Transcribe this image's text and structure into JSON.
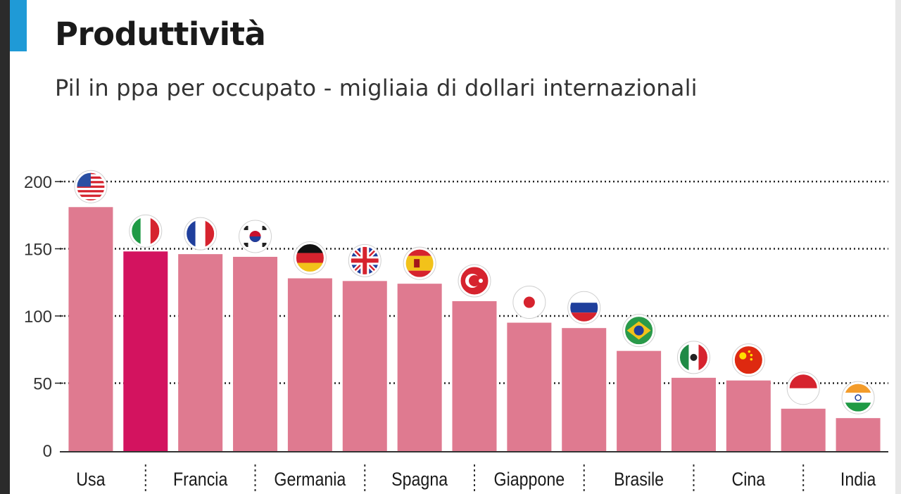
{
  "title": "Produttività",
  "subtitle": "Pil in ppa per occupato - migliaia di dollari internazionali",
  "colors": {
    "accent": "#1f9ad6",
    "bar": "#df7a90",
    "bar_highlight": "#d3135f",
    "grid": "#222222",
    "text": "#1a1a1a"
  },
  "chart_data": {
    "type": "bar",
    "title": "Produttività",
    "subtitle": "Pil in ppa per occupato - migliaia di dollari internazionali",
    "xlabel": "",
    "ylabel": "",
    "ylim": [
      0,
      200
    ],
    "yticks": [
      0,
      50,
      100,
      150,
      200
    ],
    "grid": true,
    "categories": [
      "Usa",
      "Italia",
      "Francia",
      "Corea del Sud",
      "Germania",
      "Regno Unito",
      "Spagna",
      "Turchia",
      "Giappone",
      "Russia",
      "Brasile",
      "Messico",
      "Cina",
      "Indonesia",
      "India"
    ],
    "x_tick_labels": [
      "Usa",
      "",
      "Francia",
      "",
      "Germania",
      "",
      "Spagna",
      "",
      "Giappone",
      "",
      "Brasile",
      "",
      "Cina",
      "",
      "India"
    ],
    "values": [
      181,
      148,
      146,
      144,
      128,
      126,
      124,
      111,
      95,
      91,
      74,
      54,
      52,
      31,
      24
    ],
    "highlight_index": 1,
    "flag_icons": [
      "usa-flag-icon",
      "italy-flag-icon",
      "france-flag-icon",
      "south-korea-flag-icon",
      "germany-flag-icon",
      "uk-flag-icon",
      "spain-flag-icon",
      "turkey-flag-icon",
      "japan-flag-icon",
      "russia-flag-icon",
      "brazil-flag-icon",
      "mexico-flag-icon",
      "china-flag-icon",
      "indonesia-flag-icon",
      "india-flag-icon"
    ]
  }
}
